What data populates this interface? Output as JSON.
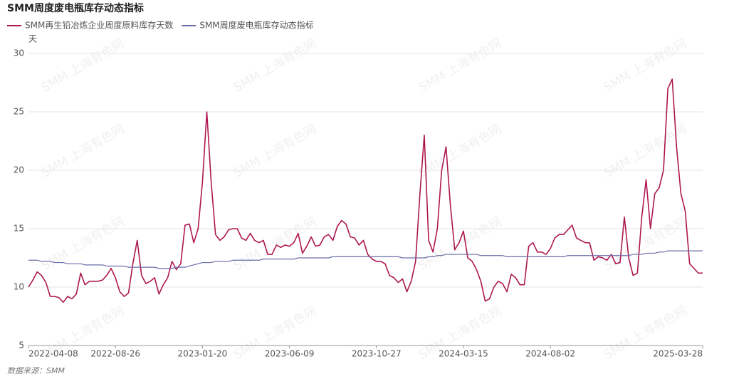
{
  "chart_data": {
    "type": "line",
    "title": "SMM周度废电瓶库存动态指标",
    "y_unit": "天",
    "source": "数据来源：SMM",
    "watermark": "SMM 上海有色网",
    "ylim": [
      5,
      30
    ],
    "yticks": [
      5,
      10,
      15,
      20,
      25,
      30
    ],
    "grid": true,
    "categories": [
      "2022-04-08",
      null,
      null,
      null,
      null,
      null,
      null,
      null,
      null,
      null,
      null,
      null,
      null,
      null,
      null,
      null,
      null,
      null,
      null,
      null,
      "2022-08-26",
      null,
      null,
      null,
      null,
      null,
      null,
      null,
      null,
      null,
      null,
      null,
      null,
      null,
      null,
      null,
      null,
      null,
      null,
      null,
      "2023-01-20",
      null,
      null,
      null,
      null,
      null,
      null,
      null,
      null,
      null,
      null,
      null,
      null,
      null,
      null,
      null,
      null,
      null,
      null,
      null,
      "2023-06-09",
      null,
      null,
      null,
      null,
      null,
      null,
      null,
      null,
      null,
      null,
      null,
      null,
      null,
      null,
      null,
      null,
      null,
      null,
      null,
      "2023-10-27",
      null,
      null,
      null,
      null,
      null,
      null,
      null,
      null,
      null,
      null,
      null,
      null,
      null,
      null,
      null,
      null,
      null,
      null,
      null,
      "2024-03-15",
      null,
      null,
      null,
      null,
      null,
      null,
      null,
      null,
      null,
      null,
      null,
      null,
      null,
      null,
      null,
      null,
      null,
      null,
      null,
      "2024-08-02",
      null,
      null,
      null,
      null,
      null,
      null,
      null,
      null,
      null,
      null,
      null,
      null,
      null,
      null,
      null,
      null,
      null,
      null,
      null,
      null,
      null,
      null,
      null,
      null,
      null,
      null,
      null,
      null,
      null,
      null,
      null,
      null,
      null,
      null,
      "2025-03-28"
    ],
    "series": [
      {
        "name": "SMM再生铅冶炼企业周度原料库存天数",
        "color": "#ad1750",
        "values": [
          10.0,
          10.6,
          11.3,
          11.0,
          10.4,
          9.2,
          9.2,
          9.1,
          8.7,
          9.2,
          9.0,
          9.4,
          11.2,
          10.2,
          10.5,
          10.5,
          10.5,
          10.6,
          11.0,
          11.6,
          10.8,
          9.6,
          9.2,
          9.5,
          12.0,
          14.0,
          11.0,
          10.3,
          10.5,
          10.8,
          9.4,
          10.2,
          10.8,
          12.2,
          11.5,
          12.0,
          15.3,
          15.4,
          13.8,
          15.0,
          19.0,
          25.0,
          19.0,
          14.5,
          14.0,
          14.3,
          14.9,
          15.0,
          15.0,
          14.2,
          14.0,
          14.6,
          14.0,
          13.8,
          14.0,
          12.8,
          12.8,
          13.6,
          13.4,
          13.6,
          13.5,
          13.8,
          14.6,
          12.9,
          13.5,
          14.3,
          13.5,
          13.6,
          14.3,
          14.5,
          14.0,
          15.2,
          15.7,
          15.4,
          14.3,
          14.2,
          13.6,
          14.0,
          12.8,
          12.4,
          12.2,
          12.2,
          12.0,
          11.0,
          10.8,
          10.4,
          10.7,
          9.6,
          10.5,
          12.2,
          18.0,
          23.0,
          14.0,
          13.0,
          15.0,
          20.0,
          22.0,
          17.0,
          13.2,
          13.8,
          14.8,
          12.5,
          12.2,
          11.5,
          10.5,
          8.8,
          9.0,
          10.0,
          10.5,
          10.3,
          9.6,
          11.1,
          10.8,
          10.2,
          10.2,
          13.5,
          13.8,
          13.0,
          13.0,
          12.8,
          13.3,
          14.2,
          14.5,
          14.5,
          14.9,
          15.3,
          14.2,
          14.0,
          13.8,
          13.8,
          12.3,
          12.6,
          12.5,
          12.3,
          12.8,
          12.0,
          12.1,
          16.0,
          12.5,
          11.0,
          11.2,
          16.0,
          19.2,
          15.0,
          18.0,
          18.5,
          20.0,
          27.0,
          27.8,
          22.0,
          18.0,
          16.5,
          12.0,
          11.6,
          11.2,
          11.2
        ]
      },
      {
        "name": "SMM周度废电瓶库存动态指标",
        "color": "#6a6ea8",
        "values": [
          12.3,
          12.3,
          12.3,
          12.2,
          12.2,
          12.2,
          12.1,
          12.1,
          12.1,
          12.0,
          12.0,
          12.0,
          12.0,
          11.9,
          11.9,
          11.9,
          11.9,
          11.9,
          11.8,
          11.8,
          11.8,
          11.8,
          11.8,
          11.7,
          11.7,
          11.7,
          11.7,
          11.7,
          11.7,
          11.7,
          11.6,
          11.6,
          11.6,
          11.6,
          11.7,
          11.7,
          11.7,
          11.8,
          11.9,
          12.0,
          12.1,
          12.1,
          12.1,
          12.2,
          12.2,
          12.2,
          12.2,
          12.3,
          12.3,
          12.3,
          12.3,
          12.3,
          12.3,
          12.3,
          12.4,
          12.4,
          12.4,
          12.4,
          12.4,
          12.4,
          12.4,
          12.4,
          12.5,
          12.5,
          12.5,
          12.5,
          12.5,
          12.5,
          12.5,
          12.5,
          12.6,
          12.6,
          12.6,
          12.6,
          12.6,
          12.6,
          12.6,
          12.6,
          12.6,
          12.6,
          12.6,
          12.6,
          12.6,
          12.6,
          12.6,
          12.6,
          12.5,
          12.5,
          12.5,
          12.5,
          12.5,
          12.5,
          12.6,
          12.6,
          12.7,
          12.7,
          12.8,
          12.8,
          12.8,
          12.8,
          12.8,
          12.8,
          12.8,
          12.8,
          12.7,
          12.7,
          12.7,
          12.7,
          12.7,
          12.7,
          12.6,
          12.6,
          12.6,
          12.6,
          12.6,
          12.6,
          12.6,
          12.6,
          12.6,
          12.6,
          12.6,
          12.6,
          12.6,
          12.6,
          12.7,
          12.7,
          12.7,
          12.7,
          12.7,
          12.7,
          12.7,
          12.7,
          12.7,
          12.7,
          12.7,
          12.7,
          12.7,
          12.7,
          12.7,
          12.8,
          12.8,
          12.8,
          12.9,
          12.9,
          12.9,
          13.0,
          13.0,
          13.1,
          13.1,
          13.1,
          13.1,
          13.1,
          13.1,
          13.1,
          13.1,
          13.1
        ]
      }
    ]
  }
}
